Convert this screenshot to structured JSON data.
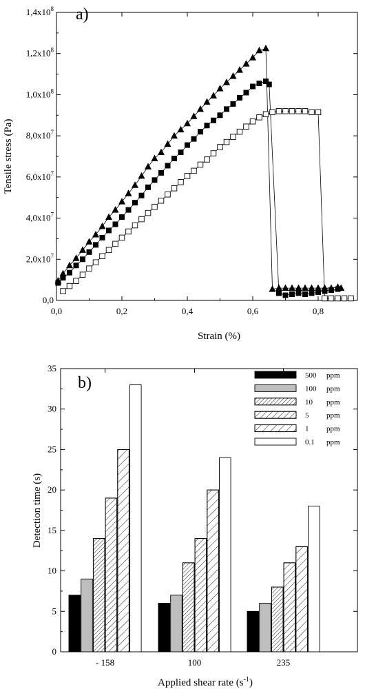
{
  "chart_data": [
    {
      "type": "line",
      "panel_label": "a)",
      "xlabel": "Strain (%)",
      "ylabel": "Tensile stress (Pa)",
      "xlim": [
        0.0,
        0.92
      ],
      "ylim": [
        0,
        140000000
      ],
      "x_ticks": [
        {
          "value": 0.0,
          "label": "0,0"
        },
        {
          "value": 0.2,
          "label": "0,2"
        },
        {
          "value": 0.4,
          "label": "0,4"
        },
        {
          "value": 0.6,
          "label": "0,6"
        },
        {
          "value": 0.8,
          "label": "0,8"
        }
      ],
      "y_ticks": [
        {
          "value": 0,
          "mantissa": "0,0",
          "exp": ""
        },
        {
          "value": 20000000,
          "mantissa": "2,0x10",
          "exp": "7"
        },
        {
          "value": 40000000,
          "mantissa": "4,0x10",
          "exp": "7"
        },
        {
          "value": 60000000,
          "mantissa": "6,0x10",
          "exp": "7"
        },
        {
          "value": 80000000,
          "mantissa": "8,0x10",
          "exp": "7"
        },
        {
          "value": 100000000,
          "mantissa": "1,0x10",
          "exp": "8"
        },
        {
          "value": 120000000,
          "mantissa": "1,2x10",
          "exp": "8"
        },
        {
          "value": 140000000,
          "mantissa": "1,4x10",
          "exp": "8"
        }
      ],
      "series": [
        {
          "marker": "filled-triangle",
          "points": [
            [
              0.005,
              9500000.0
            ],
            [
              0.02,
              13000000.0
            ],
            [
              0.04,
              17000000.0
            ],
            [
              0.06,
              20500000.0
            ],
            [
              0.08,
              24500000.0
            ],
            [
              0.1,
              28500000.0
            ],
            [
              0.12,
              32000000.0
            ],
            [
              0.14,
              36000000.0
            ],
            [
              0.16,
              40500000.0
            ],
            [
              0.18,
              44000000.0
            ],
            [
              0.2,
              48000000.0
            ],
            [
              0.22,
              52000000.0
            ],
            [
              0.24,
              56000000.0
            ],
            [
              0.26,
              60500000.0
            ],
            [
              0.28,
              65000000.0
            ],
            [
              0.3,
              69000000.0
            ],
            [
              0.32,
              72000000.0
            ],
            [
              0.34,
              76000000.0
            ],
            [
              0.36,
              80000000.0
            ],
            [
              0.38,
              83000000.0
            ],
            [
              0.4,
              86000000.0
            ],
            [
              0.42,
              89500000.0
            ],
            [
              0.44,
              93000000.0
            ],
            [
              0.46,
              96500000.0
            ],
            [
              0.48,
              99500000.0
            ],
            [
              0.5,
              103000000.0
            ],
            [
              0.52,
              106000000.0
            ],
            [
              0.54,
              109000000.0
            ],
            [
              0.56,
              112000000.0
            ],
            [
              0.58,
              115000000.0
            ],
            [
              0.6,
              118000000.0
            ],
            [
              0.62,
              121500000.0
            ],
            [
              0.64,
              122500000.0
            ],
            [
              0.66,
              5500000.0
            ],
            [
              0.68,
              6000000.0
            ],
            [
              0.7,
              6000000.0
            ],
            [
              0.72,
              6000000.0
            ],
            [
              0.74,
              6000000.0
            ],
            [
              0.76,
              6000000.0
            ],
            [
              0.78,
              6000000.0
            ],
            [
              0.8,
              6000000.0
            ],
            [
              0.82,
              6000000.0
            ],
            [
              0.84,
              6000000.0
            ],
            [
              0.86,
              6500000.0
            ],
            [
              0.87,
              6000000.0
            ]
          ]
        },
        {
          "marker": "filled-square",
          "points": [
            [
              0.005,
              8500000.0
            ],
            [
              0.02,
              11000000.0
            ],
            [
              0.04,
              13500000.0
            ],
            [
              0.06,
              17000000.0
            ],
            [
              0.08,
              20000000.0
            ],
            [
              0.1,
              23500000.0
            ],
            [
              0.12,
              27000000.0
            ],
            [
              0.14,
              30500000.0
            ],
            [
              0.16,
              34000000.0
            ],
            [
              0.18,
              37000000.0
            ],
            [
              0.2,
              40500000.0
            ],
            [
              0.22,
              44000000.0
            ],
            [
              0.24,
              47500000.0
            ],
            [
              0.26,
              51000000.0
            ],
            [
              0.28,
              55000000.0
            ],
            [
              0.3,
              58500000.0
            ],
            [
              0.32,
              62000000.0
            ],
            [
              0.34,
              65500000.0
            ],
            [
              0.36,
              69000000.0
            ],
            [
              0.38,
              72000000.0
            ],
            [
              0.4,
              75500000.0
            ],
            [
              0.42,
              78500000.0
            ],
            [
              0.44,
              82000000.0
            ],
            [
              0.46,
              85000000.0
            ],
            [
              0.48,
              87500000.0
            ],
            [
              0.5,
              90000000.0
            ],
            [
              0.52,
              93000000.0
            ],
            [
              0.54,
              95500000.0
            ],
            [
              0.56,
              98500000.0
            ],
            [
              0.58,
              101000000.0
            ],
            [
              0.6,
              104000000.0
            ],
            [
              0.62,
              105500000.0
            ],
            [
              0.64,
              106500000.0
            ],
            [
              0.65,
              105000000.0
            ],
            [
              0.68,
              3500000.0
            ],
            [
              0.7,
              2500000.0
            ],
            [
              0.72,
              3000000.0
            ],
            [
              0.74,
              3500000.0
            ],
            [
              0.76,
              3000000.0
            ],
            [
              0.78,
              3500000.0
            ],
            [
              0.8,
              4000000.0
            ],
            [
              0.82,
              4500000.0
            ],
            [
              0.84,
              5000000.0
            ],
            [
              0.86,
              5500000.0
            ]
          ]
        },
        {
          "marker": "open-square",
          "points": [
            [
              0.02,
              4500000.0
            ],
            [
              0.04,
              7000000.0
            ],
            [
              0.06,
              9500000.0
            ],
            [
              0.08,
              12500000.0
            ],
            [
              0.1,
              15500000.0
            ],
            [
              0.12,
              18500000.0
            ],
            [
              0.14,
              21500000.0
            ],
            [
              0.16,
              24500000.0
            ],
            [
              0.18,
              27500000.0
            ],
            [
              0.2,
              30500000.0
            ],
            [
              0.22,
              33500000.0
            ],
            [
              0.24,
              36500000.0
            ],
            [
              0.26,
              39500000.0
            ],
            [
              0.28,
              42500000.0
            ],
            [
              0.3,
              45500000.0
            ],
            [
              0.32,
              48500000.0
            ],
            [
              0.34,
              51500000.0
            ],
            [
              0.36,
              54500000.0
            ],
            [
              0.38,
              57500000.0
            ],
            [
              0.4,
              60500000.0
            ],
            [
              0.42,
              63000000.0
            ],
            [
              0.44,
              66000000.0
            ],
            [
              0.46,
              68500000.0
            ],
            [
              0.48,
              71500000.0
            ],
            [
              0.5,
              74500000.0
            ],
            [
              0.52,
              77000000.0
            ],
            [
              0.54,
              79500000.0
            ],
            [
              0.56,
              82000000.0
            ],
            [
              0.58,
              84500000.0
            ],
            [
              0.6,
              87000000.0
            ],
            [
              0.62,
              89000000.0
            ],
            [
              0.64,
              90500000.0
            ],
            [
              0.66,
              91500000.0
            ],
            [
              0.68,
              92000000.0
            ],
            [
              0.7,
              92000000.0
            ],
            [
              0.72,
              92000000.0
            ],
            [
              0.74,
              92000000.0
            ],
            [
              0.76,
              92000000.0
            ],
            [
              0.78,
              91500000.0
            ],
            [
              0.8,
              91500000.0
            ],
            [
              0.82,
              1000000.0
            ],
            [
              0.84,
              1000000.0
            ],
            [
              0.86,
              1000000.0
            ],
            [
              0.88,
              1000000.0
            ],
            [
              0.9,
              1000000.0
            ]
          ]
        }
      ]
    },
    {
      "type": "bar",
      "panel_label": "b)",
      "xlabel": "Applied shear rate (s",
      "xlabel_sup": "-1",
      "xlabel_tail": ")",
      "ylabel": "Detection time (s)",
      "ylim": [
        0,
        35
      ],
      "y_ticks": [
        0,
        5,
        10,
        15,
        20,
        25,
        30,
        35
      ],
      "categories": [
        "- 158",
        "100",
        "235"
      ],
      "series": [
        {
          "name": "500",
          "unit": "ppm",
          "fill": "#000000",
          "pattern": "solid",
          "values": [
            7,
            6,
            5
          ]
        },
        {
          "name": "100",
          "unit": "ppm",
          "fill": "#bebebe",
          "pattern": "solid",
          "values": [
            9,
            7,
            6
          ]
        },
        {
          "name": "10",
          "unit": "ppm",
          "fill": "#ffffff",
          "pattern": "hatch-dense",
          "values": [
            14,
            11,
            8
          ]
        },
        {
          "name": "5",
          "unit": "ppm",
          "fill": "#ffffff",
          "pattern": "hatch-medium",
          "values": [
            19,
            14,
            11
          ]
        },
        {
          "name": "1",
          "unit": "ppm",
          "fill": "#ffffff",
          "pattern": "hatch-sparse",
          "values": [
            25,
            20,
            13
          ]
        },
        {
          "name": "0.1",
          "unit": "ppm",
          "fill": "#ffffff",
          "pattern": "none",
          "values": [
            33,
            24,
            18
          ]
        }
      ]
    }
  ]
}
